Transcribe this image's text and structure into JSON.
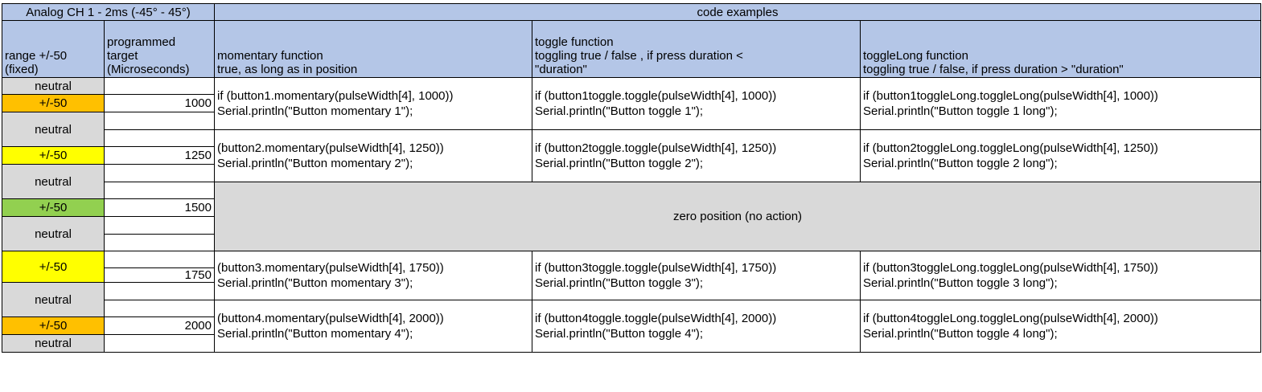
{
  "title_left": "Analog CH 1 - 2ms (-45° - 45°)",
  "title_right": "code examples",
  "headers": {
    "range": [
      "range +/-50",
      "(fixed)"
    ],
    "target": [
      "programmed",
      "target",
      "(Microseconds)"
    ],
    "momentary": [
      "momentary function",
      "true, as long as in position"
    ],
    "toggle": [
      "toggle function",
      "toggling true / false , if press duration <",
      "\"duration\""
    ],
    "toggleLong": [
      "toggleLong function",
      "toggling true / false, if press duration > \"duration\""
    ]
  },
  "neutral_label": "neutral",
  "range_label": "+/-50",
  "colors": {
    "header_bg": "#b4c6e7",
    "neutral_bg": "#d9d9d9",
    "orange": "#ffc000",
    "yellow": "#ffff00",
    "green": "#92d050"
  },
  "rows": [
    {
      "target": "1000",
      "range_color": "orange",
      "momentary": [
        "if (button1.momentary(pulseWidth[4], 1000))",
        "Serial.println(\"Button momentary 1\");"
      ],
      "toggle": [
        "if (button1toggle.toggle(pulseWidth[4], 1000))",
        "Serial.println(\"Button toggle 1\");"
      ],
      "toggleLong": [
        "if (button1toggleLong.toggleLong(pulseWidth[4], 1000))",
        "Serial.println(\"Button toggle 1 long\");"
      ]
    },
    {
      "target": "1250",
      "range_color": "yellow",
      "momentary": [
        "(button2.momentary(pulseWidth[4], 1250))",
        "Serial.println(\"Button momentary 2\");"
      ],
      "toggle": [
        "if (button2toggle.toggle(pulseWidth[4], 1250))",
        "Serial.println(\"Button toggle 2\");"
      ],
      "toggleLong": [
        "if (button2toggleLong.toggleLong(pulseWidth[4], 1250))",
        "Serial.println(\"Button toggle 2 long\");"
      ]
    },
    {
      "target": "1500",
      "range_color": "green",
      "zero_text": "zero position (no action)"
    },
    {
      "target": "1750",
      "range_color": "yellow",
      "momentary": [
        "(button3.momentary(pulseWidth[4], 1750))",
        "Serial.println(\"Button momentary 3\");"
      ],
      "toggle": [
        "if (button3toggle.toggle(pulseWidth[4], 1750))",
        "Serial.println(\"Button toggle 3\");"
      ],
      "toggleLong": [
        "if (button3toggleLong.toggleLong(pulseWidth[4], 1750))",
        "Serial.println(\"Button toggle 3 long\");"
      ]
    },
    {
      "target": "2000",
      "range_color": "orange",
      "momentary": [
        "(button4.momentary(pulseWidth[4], 2000))",
        "Serial.println(\"Button momentary 4\");"
      ],
      "toggle": [
        "if (button4toggle.toggle(pulseWidth[4], 2000))",
        "Serial.println(\"Button toggle 4\");"
      ],
      "toggleLong": [
        "if (button4toggleLong.toggleLong(pulseWidth[4], 2000))",
        "Serial.println(\"Button toggle 4 long\");"
      ]
    }
  ]
}
